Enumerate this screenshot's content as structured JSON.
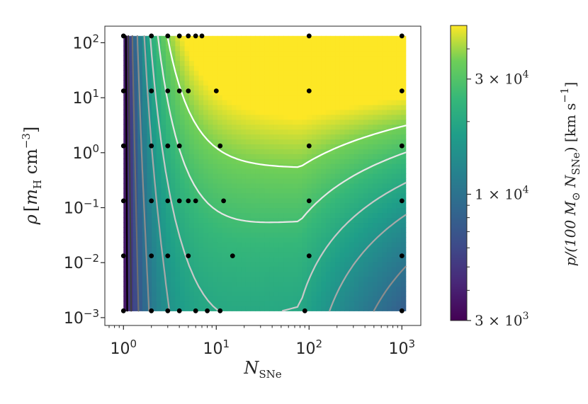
{
  "chart_data": {
    "type": "heatmap",
    "title": "",
    "xlabel": {
      "main": "N",
      "sub": "SNe"
    },
    "ylabel": {
      "rho": "ρ",
      "bracket_open": "[",
      "m": "m",
      "m_sub": "H",
      "unit": " cm",
      "exp": "−3",
      "bracket_close": "]"
    },
    "x_scale": "log",
    "y_scale": "log",
    "xlim": [
      0.63,
      1600
    ],
    "ylim": [
      0.00072,
      200
    ],
    "x_ticks": [
      {
        "value": 1,
        "base": "10",
        "exp": "0"
      },
      {
        "value": 10,
        "base": "10",
        "exp": "1"
      },
      {
        "value": 100,
        "base": "10",
        "exp": "2"
      },
      {
        "value": 1000,
        "base": "10",
        "exp": "3"
      }
    ],
    "y_ticks": [
      {
        "value": 0.001,
        "base": "10",
        "exp": "-3"
      },
      {
        "value": 0.01,
        "base": "10",
        "exp": "-2"
      },
      {
        "value": 0.1,
        "base": "10",
        "exp": "-1"
      },
      {
        "value": 1,
        "base": "10",
        "exp": "0"
      },
      {
        "value": 10,
        "base": "10",
        "exp": "1"
      },
      {
        "value": 100,
        "base": "10",
        "exp": "2"
      }
    ],
    "colorbar": {
      "label": {
        "pre": "p/(100 ",
        "M": "M",
        "sun": "⊙",
        "mid": " N",
        "sub": "SNe",
        "post": ") [km s",
        "exp": "−1",
        "end": "]"
      },
      "scale": "log",
      "range": [
        3000,
        50000
      ],
      "colormap": "viridis",
      "ticks": [
        {
          "value": 3000,
          "mant": "3 × 10",
          "exp": "3"
        },
        {
          "value": 10000,
          "mant": "1 × 10",
          "exp": "4"
        },
        {
          "value": 30000,
          "mant": "3 × 10",
          "exp": "4"
        }
      ]
    },
    "grid_extent": {
      "x": [
        1,
        1100
      ],
      "y": [
        0.00133,
        133
      ]
    },
    "sample_points": [
      [
        1,
        133
      ],
      [
        2,
        133
      ],
      [
        3,
        133
      ],
      [
        4,
        133
      ],
      [
        5,
        133
      ],
      [
        6,
        133
      ],
      [
        7,
        133
      ],
      [
        100,
        133
      ],
      [
        1000,
        133
      ],
      [
        1,
        13.3
      ],
      [
        2,
        13.3
      ],
      [
        3,
        13.3
      ],
      [
        4,
        13.3
      ],
      [
        5,
        13.3
      ],
      [
        10,
        13.3
      ],
      [
        100,
        13.3
      ],
      [
        1000,
        13.3
      ],
      [
        1,
        1.33
      ],
      [
        2,
        1.33
      ],
      [
        3,
        1.33
      ],
      [
        4,
        1.33
      ],
      [
        11,
        1.33
      ],
      [
        100,
        1.33
      ],
      [
        1000,
        1.33
      ],
      [
        1,
        0.133
      ],
      [
        2,
        0.133
      ],
      [
        3,
        0.133
      ],
      [
        4,
        0.133
      ],
      [
        5,
        0.133
      ],
      [
        6,
        0.133
      ],
      [
        12,
        0.133
      ],
      [
        100,
        0.133
      ],
      [
        1000,
        0.133
      ],
      [
        1,
        0.0133
      ],
      [
        2,
        0.0133
      ],
      [
        3,
        0.0133
      ],
      [
        5,
        0.0133
      ],
      [
        15,
        0.0133
      ],
      [
        100,
        0.0133
      ],
      [
        1000,
        0.0133
      ],
      [
        1,
        0.00133
      ],
      [
        2,
        0.00133
      ],
      [
        3,
        0.00133
      ],
      [
        4,
        0.00133
      ],
      [
        6,
        0.00133
      ],
      [
        8,
        0.00133
      ],
      [
        11,
        0.00133
      ],
      [
        90,
        0.00133
      ],
      [
        1000,
        0.00133
      ]
    ],
    "contour_levels": [
      4000,
      5000,
      7000,
      10000,
      15000,
      20000,
      27000,
      36000
    ],
    "contour_colors": [
      "#000000",
      "#404040",
      "#6e6e6e",
      "#8c8c8c",
      "#a8a8a8",
      "#c8c8c8",
      "#e6e6e6",
      "#ffffff"
    ]
  }
}
